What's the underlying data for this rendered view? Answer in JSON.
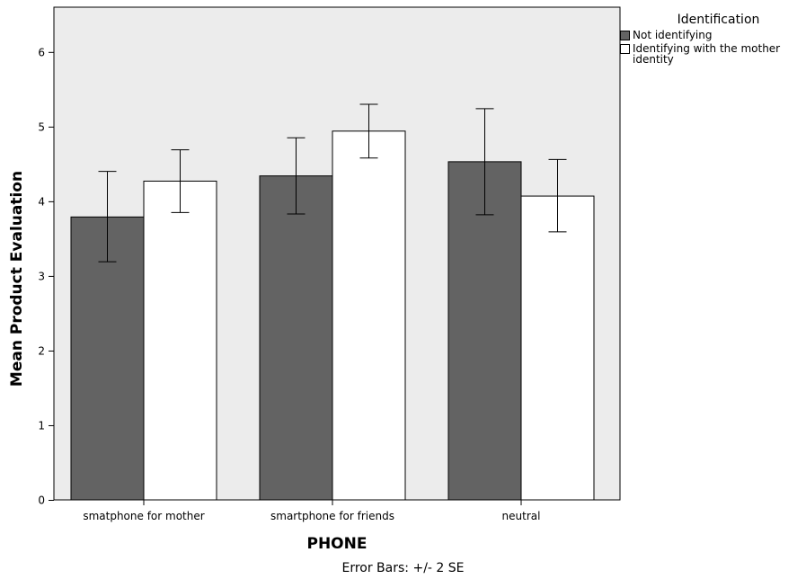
{
  "chart_data": {
    "type": "bar",
    "xlabel": "PHONE",
    "ylabel": "Mean Product Evaluation",
    "categories": [
      "smatphone for mother",
      "smartphone for friends",
      "neutral"
    ],
    "ylim": [
      0,
      6.6
    ],
    "yticks": [
      0,
      1,
      2,
      3,
      4,
      5,
      6
    ],
    "grid": false,
    "legend": {
      "title": "Identification",
      "placement": "right"
    },
    "series": [
      {
        "name": "Not identifying",
        "color": "#636363",
        "values": [
          3.79,
          4.34,
          4.53
        ],
        "error_low": [
          3.19,
          3.83,
          3.82
        ],
        "error_high": [
          4.4,
          4.85,
          5.24
        ]
      },
      {
        "name": "Identifying with the mother identity",
        "color": "#ffffff",
        "values": [
          4.27,
          4.94,
          4.07
        ],
        "error_low": [
          3.85,
          4.58,
          3.59
        ],
        "error_high": [
          4.69,
          5.3,
          4.56
        ]
      }
    ],
    "plot_background": "#ececec",
    "footnote": "Error Bars: +/- 2 SE"
  }
}
